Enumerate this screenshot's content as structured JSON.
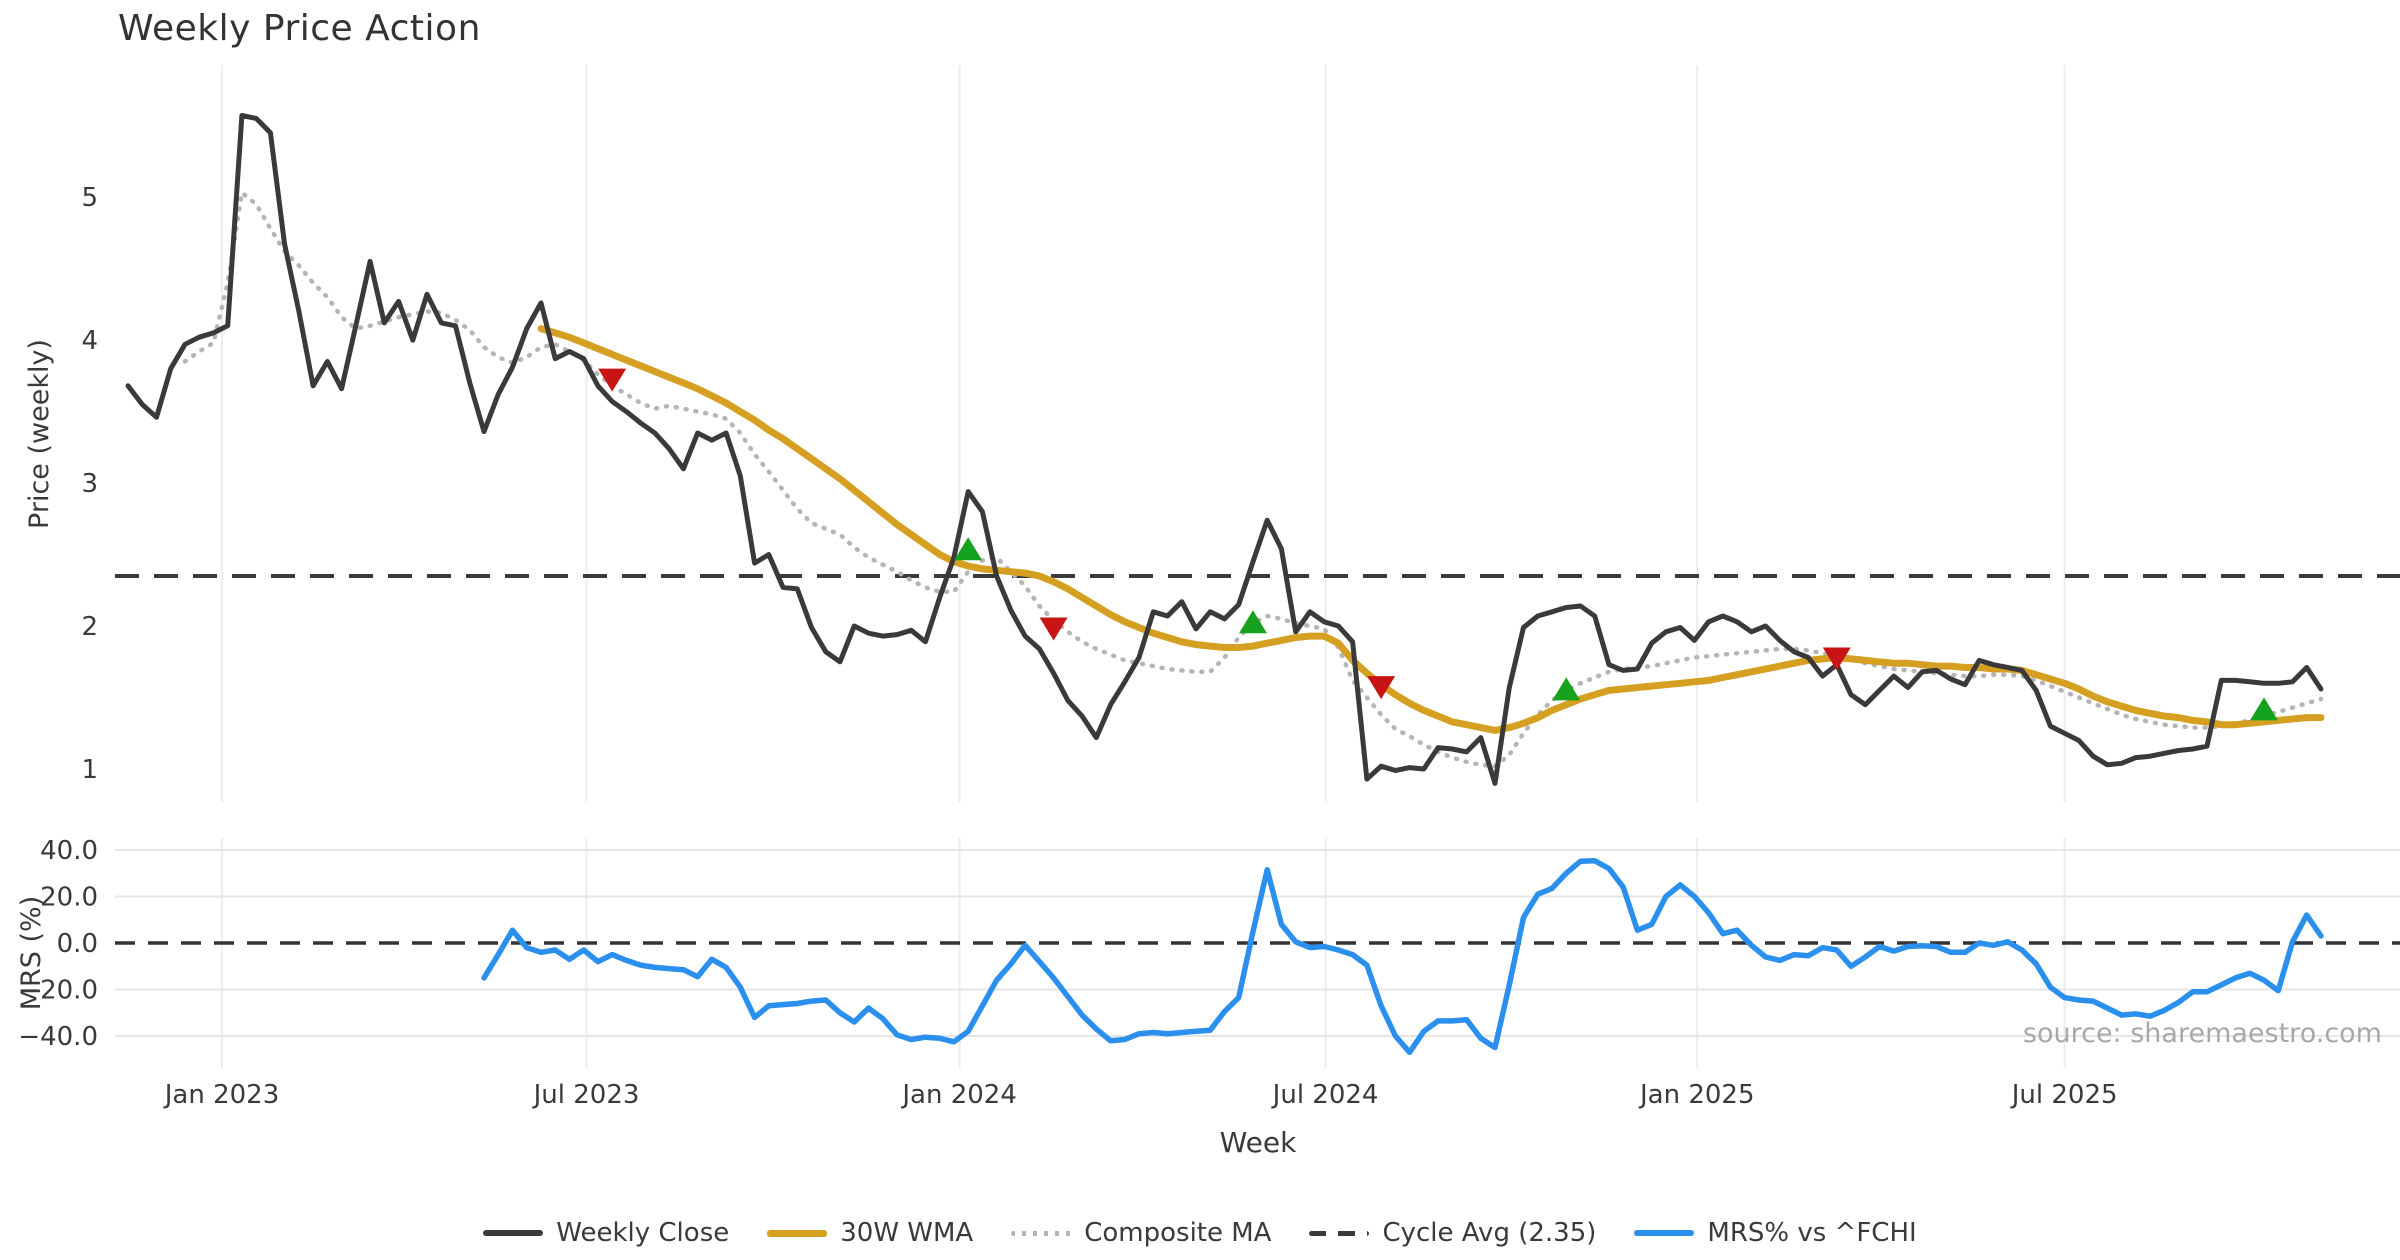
{
  "chart_data": {
    "type": "line",
    "title": "Weekly Price Action",
    "xlabel": "Week",
    "source_note": "source: sharemaestro.com",
    "x_start_week_index": 0,
    "x_total_weeks": 154,
    "x_ticks": [
      {
        "label": "Jan 2023",
        "week": 6.6
      },
      {
        "label": "Jul 2023",
        "week": 32.2
      },
      {
        "label": "Jan 2024",
        "week": 58.4
      },
      {
        "label": "Jul 2024",
        "week": 84.1
      },
      {
        "label": "Jan 2025",
        "week": 110.2
      },
      {
        "label": "Jul 2025",
        "week": 136.0
      }
    ],
    "price_panel": {
      "ylabel": "Price (weekly)",
      "ylim": [
        0.77,
        5.92
      ],
      "yticks": [
        {
          "label": "5",
          "value": 5
        },
        {
          "label": "4",
          "value": 4
        },
        {
          "label": "3",
          "value": 3
        },
        {
          "label": "2",
          "value": 2
        },
        {
          "label": "1",
          "value": 1
        }
      ],
      "cycle_avg": 2.35,
      "series": [
        {
          "name": "Weekly Close",
          "color": "#3a3a3a",
          "style": "solid",
          "width": 5,
          "values": [
            3.68,
            3.55,
            3.46,
            3.8,
            3.97,
            4.02,
            4.05,
            4.1,
            5.57,
            5.55,
            5.45,
            4.67,
            4.2,
            3.68,
            3.85,
            3.66,
            4.1,
            4.55,
            4.12,
            4.27,
            4.0,
            4.32,
            4.12,
            4.1,
            3.7,
            3.36,
            3.62,
            3.81,
            4.08,
            4.26,
            3.87,
            3.92,
            3.87,
            3.68,
            3.57,
            3.5,
            3.42,
            3.35,
            3.24,
            3.1,
            3.35,
            3.3,
            3.35,
            3.05,
            2.44,
            2.5,
            2.27,
            2.26,
            1.99,
            1.82,
            1.75,
            2.0,
            1.95,
            1.93,
            1.94,
            1.97,
            1.89,
            2.2,
            2.48,
            2.94,
            2.8,
            2.35,
            2.11,
            1.93,
            1.84,
            1.67,
            1.48,
            1.37,
            1.22,
            1.45,
            1.61,
            1.78,
            2.1,
            2.07,
            2.17,
            1.98,
            2.1,
            2.05,
            2.15,
            2.45,
            2.74,
            2.54,
            1.96,
            2.1,
            2.03,
            2.0,
            1.89,
            0.93,
            1.02,
            0.99,
            1.01,
            1.0,
            1.15,
            1.14,
            1.12,
            1.22,
            0.9,
            1.57,
            1.99,
            2.07,
            2.1,
            2.13,
            2.14,
            2.07,
            1.73,
            1.69,
            1.7,
            1.88,
            1.96,
            1.99,
            1.9,
            2.03,
            2.07,
            2.03,
            1.96,
            2.0,
            1.9,
            1.82,
            1.78,
            1.65,
            1.73,
            1.52,
            1.45,
            1.55,
            1.65,
            1.57,
            1.68,
            1.69,
            1.63,
            1.59,
            1.76,
            1.73,
            1.71,
            1.69,
            1.55,
            1.3,
            1.25,
            1.2,
            1.09,
            1.03,
            1.04,
            1.08,
            1.09,
            1.11,
            1.13,
            1.14,
            1.16,
            1.62,
            1.62,
            1.61,
            1.6,
            1.6,
            1.61,
            1.71,
            1.56
          ]
        },
        {
          "name": "30W WMA",
          "color": "#d5a021",
          "style": "solid",
          "width": 7,
          "values": [
            null,
            null,
            null,
            null,
            null,
            null,
            null,
            null,
            null,
            null,
            null,
            null,
            null,
            null,
            null,
            null,
            null,
            null,
            null,
            null,
            null,
            null,
            null,
            null,
            null,
            null,
            null,
            null,
            null,
            4.08,
            4.05,
            4.02,
            3.98,
            3.94,
            3.9,
            3.86,
            3.82,
            3.78,
            3.74,
            3.7,
            3.66,
            3.61,
            3.56,
            3.5,
            3.44,
            3.37,
            3.31,
            3.24,
            3.17,
            3.1,
            3.03,
            2.95,
            2.87,
            2.79,
            2.71,
            2.64,
            2.57,
            2.5,
            2.45,
            2.42,
            2.4,
            2.39,
            2.38,
            2.37,
            2.35,
            2.31,
            2.26,
            2.2,
            2.14,
            2.08,
            2.03,
            1.99,
            1.95,
            1.92,
            1.89,
            1.87,
            1.86,
            1.85,
            1.85,
            1.86,
            1.88,
            1.9,
            1.92,
            1.93,
            1.93,
            1.88,
            1.76,
            1.67,
            1.59,
            1.52,
            1.46,
            1.41,
            1.37,
            1.33,
            1.31,
            1.29,
            1.27,
            1.29,
            1.32,
            1.36,
            1.41,
            1.45,
            1.49,
            1.52,
            1.55,
            1.56,
            1.57,
            1.58,
            1.59,
            1.6,
            1.61,
            1.62,
            1.64,
            1.66,
            1.68,
            1.7,
            1.72,
            1.74,
            1.76,
            1.77,
            1.78,
            1.77,
            1.76,
            1.75,
            1.74,
            1.74,
            1.73,
            1.72,
            1.72,
            1.71,
            1.71,
            1.7,
            1.7,
            1.69,
            1.66,
            1.63,
            1.6,
            1.56,
            1.51,
            1.47,
            1.44,
            1.41,
            1.39,
            1.37,
            1.36,
            1.34,
            1.33,
            1.31,
            1.31,
            1.32,
            1.33,
            1.34,
            1.35,
            1.36,
            1.36
          ]
        },
        {
          "name": "Composite MA",
          "color": "#b5b5b5",
          "style": "dotted",
          "width": 4.5,
          "values": [
            null,
            null,
            null,
            null,
            3.85,
            3.92,
            3.98,
            4.4,
            5.03,
            4.95,
            4.78,
            4.62,
            4.52,
            4.4,
            4.3,
            4.16,
            4.08,
            4.1,
            4.13,
            4.16,
            4.18,
            4.2,
            4.19,
            4.14,
            4.07,
            3.95,
            3.88,
            3.84,
            3.88,
            3.95,
            3.97,
            3.92,
            3.86,
            3.76,
            3.68,
            3.62,
            3.56,
            3.52,
            3.54,
            3.52,
            3.5,
            3.48,
            3.45,
            3.35,
            3.2,
            3.08,
            2.95,
            2.82,
            2.72,
            2.68,
            2.64,
            2.55,
            2.48,
            2.43,
            2.38,
            2.32,
            2.27,
            2.24,
            2.24,
            2.38,
            2.46,
            2.48,
            2.38,
            2.28,
            2.14,
            2.04,
            1.96,
            1.89,
            1.84,
            1.8,
            1.76,
            1.74,
            1.72,
            1.7,
            1.69,
            1.68,
            1.68,
            1.78,
            1.92,
            2.02,
            2.07,
            2.05,
            2.02,
            2.0,
            1.98,
            1.85,
            1.62,
            1.5,
            1.38,
            1.28,
            1.23,
            1.17,
            1.12,
            1.08,
            1.05,
            1.03,
            1.02,
            1.1,
            1.25,
            1.38,
            1.48,
            1.55,
            1.6,
            1.64,
            1.68,
            1.7,
            1.71,
            1.72,
            1.74,
            1.76,
            1.78,
            1.79,
            1.8,
            1.81,
            1.82,
            1.83,
            1.84,
            1.84,
            1.83,
            1.81,
            1.79,
            1.77,
            1.74,
            1.72,
            1.7,
            1.69,
            1.68,
            1.67,
            1.66,
            1.65,
            1.65,
            1.66,
            1.66,
            1.65,
            1.62,
            1.58,
            1.54,
            1.5,
            1.46,
            1.42,
            1.38,
            1.35,
            1.33,
            1.31,
            1.3,
            1.29,
            1.29,
            1.3,
            1.32,
            1.34,
            1.37,
            1.4,
            1.43,
            1.46,
            1.49
          ]
        }
      ],
      "buy_markers": [
        {
          "week": 59,
          "price": 2.53
        },
        {
          "week": 79,
          "price": 2.02
        },
        {
          "week": 101,
          "price": 1.55
        },
        {
          "week": 150,
          "price": 1.41
        }
      ],
      "sell_markers": [
        {
          "week": 34,
          "price": 3.73
        },
        {
          "week": 65,
          "price": 1.99
        },
        {
          "week": 88,
          "price": 1.58
        },
        {
          "week": 120,
          "price": 1.78
        }
      ]
    },
    "mrs_panel": {
      "ylabel": "MRS (%)",
      "ylim": [
        -52.9,
        45.2
      ],
      "yticks": [
        {
          "label": "40.0",
          "value": 40
        },
        {
          "label": "20.0",
          "value": 20
        },
        {
          "label": "0.0",
          "value": 0
        },
        {
          "label": "−20.0",
          "value": -20
        },
        {
          "label": "−40.0",
          "value": -40
        }
      ],
      "zero_line": 0,
      "series": [
        {
          "name": "MRS% vs ^FCHI",
          "color": "#2b90ed",
          "style": "solid",
          "width": 5.5,
          "values": [
            null,
            null,
            null,
            null,
            null,
            null,
            null,
            null,
            null,
            null,
            null,
            null,
            null,
            null,
            null,
            null,
            null,
            null,
            null,
            null,
            null,
            null,
            null,
            null,
            null,
            -15,
            -5,
            5.5,
            -2,
            -4,
            -3,
            -7,
            -3,
            -8,
            -5,
            -7.5,
            -9.5,
            -10.5,
            -11,
            -11.5,
            -14.5,
            -7,
            -10.5,
            -19,
            -32,
            -27,
            -26.5,
            -26,
            -25,
            -24.5,
            -30,
            -34,
            -28,
            -32.5,
            -39.5,
            -41.5,
            -40.5,
            -41,
            -42.5,
            -38,
            -27,
            -16,
            -9,
            -1,
            -8,
            -15,
            -23,
            -31,
            -37,
            -42,
            -41.5,
            -39,
            -38.5,
            -39,
            -38.5,
            -38,
            -37.5,
            -29.5,
            -23.5,
            5,
            31.5,
            8,
            0.5,
            -2,
            -1.5,
            -3,
            -5,
            -9.5,
            -27,
            -40,
            -47,
            -38,
            -33.5,
            -33.5,
            -33,
            -41,
            -45,
            -18,
            11,
            21,
            23.5,
            30,
            35.2,
            35.4,
            32,
            24,
            5.5,
            8,
            20,
            25,
            20,
            13,
            4,
            5.5,
            -1,
            -6,
            -7.5,
            -5,
            -5.5,
            -2,
            -3,
            -10,
            -6,
            -1.5,
            -3.5,
            -1.5,
            -1.2,
            -1.5,
            -4,
            -4,
            0,
            -1,
            0.5,
            -3,
            -9,
            -19,
            -23.5,
            -24.5,
            -25,
            -28,
            -31,
            -30.5,
            -31.5,
            -29,
            -25.5,
            -21,
            -21,
            -18,
            -15,
            -13,
            -16,
            -20.5,
            0.5,
            12,
            3
          ]
        }
      ]
    },
    "legend": [
      {
        "label": "Weekly Close",
        "style": "solid-close"
      },
      {
        "label": "30W WMA",
        "style": "solid-wma"
      },
      {
        "label": "Composite MA",
        "style": "dotted"
      },
      {
        "label": "Cycle Avg (2.35)",
        "style": "dashed"
      },
      {
        "label": "MRS% vs ^FCHI",
        "style": "solid-mrs"
      }
    ],
    "colors": {
      "weekly_close": "#3a3a3a",
      "wma_30w": "#d5a021",
      "composite_ma": "#b5b5b5",
      "cycle_avg": "#3a3a3a",
      "mrs": "#2b90ed",
      "buy_marker": "#16a11e",
      "sell_marker": "#c81414",
      "gridline": "#ececec",
      "tick_text": "#3a3a3a",
      "source_text": "#a8a8a8"
    },
    "layout_hints": {
      "grid": "vertical-both-panels, horizontal-mrs-panel",
      "legend_position": "bottom-center"
    }
  }
}
